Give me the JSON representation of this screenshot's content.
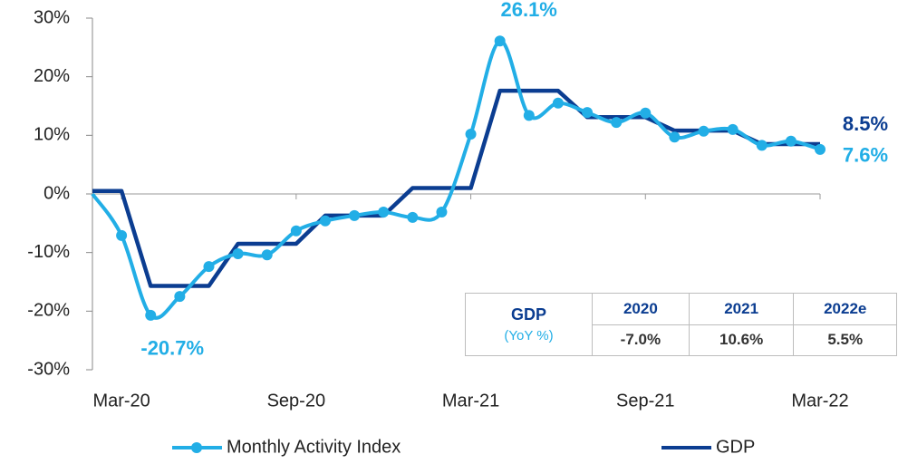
{
  "chart_data": {
    "type": "line",
    "categories": [
      null,
      "Mar-20",
      null,
      null,
      null,
      null,
      null,
      "Sep-20",
      null,
      null,
      null,
      null,
      null,
      "Mar-21",
      null,
      null,
      null,
      null,
      null,
      "Sep-21",
      null,
      null,
      null,
      null,
      null,
      "Mar-22"
    ],
    "series": [
      {
        "name": "Monthly Activity Index",
        "color": "#22aee6",
        "smooth": true,
        "markers": true,
        "values": [
          0,
          -7.1,
          -20.7,
          -17.5,
          -12.4,
          -10.2,
          -10.4,
          -6.3,
          -4.6,
          -3.7,
          -3.1,
          -4.0,
          -3.1,
          10.2,
          26.1,
          13.4,
          15.5,
          13.9,
          12.2,
          13.8,
          9.7,
          10.7,
          11.0,
          8.3,
          9.0,
          7.6
        ]
      },
      {
        "name": "GDP",
        "color": "#0b3d91",
        "smooth": false,
        "markers": false,
        "values": [
          0.5,
          0.5,
          -15.7,
          -15.7,
          -15.7,
          -8.5,
          -8.5,
          -8.5,
          -3.7,
          -3.7,
          -3.7,
          1.0,
          1.0,
          1.0,
          17.6,
          17.6,
          17.6,
          13.1,
          13.1,
          13.1,
          10.8,
          10.8,
          10.8,
          8.5,
          8.5,
          8.5
        ]
      }
    ],
    "ylim": [
      -30,
      30
    ],
    "yticks": [
      {
        "value": -30,
        "label": "-30%"
      },
      {
        "value": -20,
        "label": "-20%"
      },
      {
        "value": -10,
        "label": "-10%"
      },
      {
        "value": 0,
        "label": "0%"
      },
      {
        "value": 10,
        "label": "10%"
      },
      {
        "value": 20,
        "label": "20%"
      },
      {
        "value": 30,
        "label": "30%"
      }
    ],
    "annotations": [
      {
        "text": "26.1%",
        "series": 0,
        "index": 14,
        "dx": 32,
        "dy": -33
      },
      {
        "text": "-20.7%",
        "series": 0,
        "index": 2,
        "dx": 24,
        "dy": 38
      },
      {
        "text": "8.5%",
        "series": 1,
        "index": 25,
        "dx": 50,
        "dy": -21
      },
      {
        "text": "7.6%",
        "series": 0,
        "index": 25,
        "dx": 50,
        "dy": 8
      }
    ],
    "legend": "bottom",
    "table": {
      "header": [
        "GDP",
        "2020",
        "2021",
        "2022e"
      ],
      "subheader": "(YoY %)",
      "values": [
        "-7.0%",
        "10.6%",
        "5.5%"
      ]
    }
  }
}
